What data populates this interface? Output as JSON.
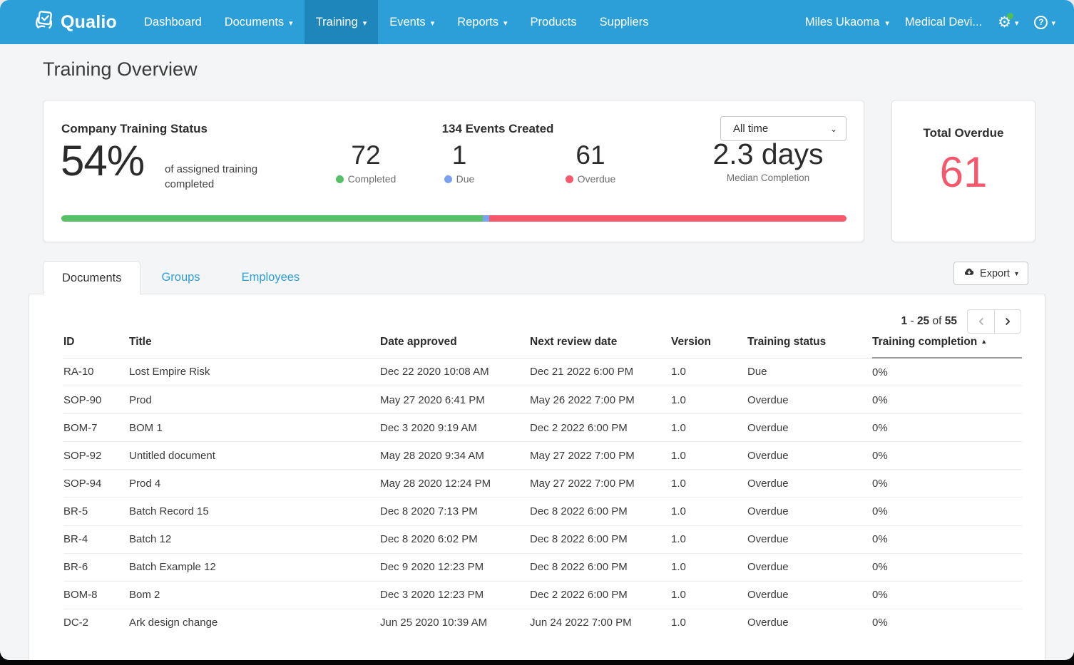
{
  "colors": {
    "navbar_bg": "#2C9FD9",
    "navbar_active_bg": "#1F86BB",
    "link_blue": "#2f9fd9",
    "completed_green": "#57C066",
    "due_blue": "#7CA1F3",
    "overdue_red": "#F4586A"
  },
  "navbar": {
    "brand": "Qualio",
    "items": [
      {
        "label": "Dashboard",
        "caret": false
      },
      {
        "label": "Documents",
        "caret": true
      },
      {
        "label": "Training",
        "caret": true,
        "active": true
      },
      {
        "label": "Events",
        "caret": true
      },
      {
        "label": "Reports",
        "caret": true
      },
      {
        "label": "Products",
        "caret": false
      },
      {
        "label": "Suppliers",
        "caret": false
      }
    ],
    "user": "Miles Ukaoma",
    "org": "Medical Devi..."
  },
  "page": {
    "title": "Training Overview"
  },
  "status_card": {
    "title": "Company Training Status",
    "percent": "54%",
    "percent_caption_line1": "of assigned training",
    "percent_caption_line2": "completed",
    "events_title": "134 Events Created",
    "stats": [
      {
        "value": "72",
        "label": "Completed",
        "color": "#57C066"
      },
      {
        "value": "1",
        "label": "Due",
        "color": "#7CA1F3"
      },
      {
        "value": "61",
        "label": "Overdue",
        "color": "#F4586A"
      }
    ],
    "median_value": "2.3 days",
    "median_label": "Median Completion",
    "filter_value": "All time",
    "bar": {
      "segments": [
        {
          "name": "completed",
          "pct": 53.7,
          "color": "#57C066"
        },
        {
          "name": "due",
          "pct": 0.8,
          "color": "#7CA1F3"
        },
        {
          "name": "overdue",
          "pct": 45.5,
          "color": "#F4586A"
        }
      ]
    }
  },
  "overdue_card": {
    "title": "Total Overdue",
    "value": "61"
  },
  "tabs": [
    {
      "label": "Documents",
      "active": true
    },
    {
      "label": "Groups",
      "active": false
    },
    {
      "label": "Employees",
      "active": false
    }
  ],
  "export_label": "Export",
  "pagination": {
    "start": "1",
    "sep": "-",
    "end": "25",
    "of": "of",
    "total": "55"
  },
  "table": {
    "columns": [
      {
        "label": "ID",
        "sorted": false
      },
      {
        "label": "Title",
        "sorted": false
      },
      {
        "label": "Date approved",
        "sorted": false
      },
      {
        "label": "Next review date",
        "sorted": false
      },
      {
        "label": "Version",
        "sorted": false
      },
      {
        "label": "Training status",
        "sorted": false
      },
      {
        "label": "Training completion",
        "sorted": true
      }
    ],
    "rows": [
      [
        "RA-10",
        "Lost Empire Risk",
        "Dec 22 2020 10:08 AM",
        "Dec 21 2022 6:00 PM",
        "1.0",
        "Due",
        "0%"
      ],
      [
        "SOP-90",
        "Prod",
        "May 27 2020 6:41 PM",
        "May 26 2022 7:00 PM",
        "1.0",
        "Overdue",
        "0%"
      ],
      [
        "BOM-7",
        "BOM 1",
        "Dec 3 2020 9:19 AM",
        "Dec 2 2022 6:00 PM",
        "1.0",
        "Overdue",
        "0%"
      ],
      [
        "SOP-92",
        "Untitled document",
        "May 28 2020 9:34 AM",
        "May 27 2022 7:00 PM",
        "1.0",
        "Overdue",
        "0%"
      ],
      [
        "SOP-94",
        "Prod 4",
        "May 28 2020 12:24 PM",
        "May 27 2022 7:00 PM",
        "1.0",
        "Overdue",
        "0%"
      ],
      [
        "BR-5",
        "Batch Record 15",
        "Dec 8 2020 7:13 PM",
        "Dec 8 2022 6:00 PM",
        "1.0",
        "Overdue",
        "0%"
      ],
      [
        "BR-4",
        "Batch 12",
        "Dec 8 2020 6:02 PM",
        "Dec 8 2022 6:00 PM",
        "1.0",
        "Overdue",
        "0%"
      ],
      [
        "BR-6",
        "Batch Example 12",
        "Dec 9 2020 12:23 PM",
        "Dec 8 2022 6:00 PM",
        "1.0",
        "Overdue",
        "0%"
      ],
      [
        "BOM-8",
        "Bom 2",
        "Dec 3 2020 12:23 PM",
        "Dec 2 2022 6:00 PM",
        "1.0",
        "Overdue",
        "0%"
      ],
      [
        "DC-2",
        "Ark design change",
        "Jun 25 2020 10:39 AM",
        "Jun 24 2022 7:00 PM",
        "1.0",
        "Overdue",
        "0%"
      ]
    ]
  }
}
